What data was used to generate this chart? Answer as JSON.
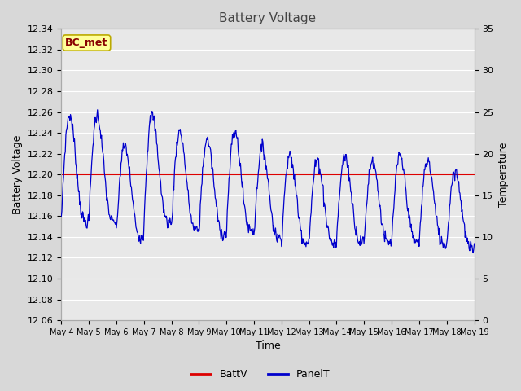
{
  "title": "Battery Voltage",
  "xlabel": "Time",
  "ylabel_left": "Battery Voltage",
  "ylabel_right": "Temperature",
  "ylim_left": [
    12.06,
    12.34
  ],
  "ylim_right": [
    0,
    35
  ],
  "batt_v": 12.2,
  "batt_color": "#dd0000",
  "panel_color": "#0000cc",
  "fig_bg": "#d8d8d8",
  "plot_bg": "#e8e8e8",
  "annotation_text": "BC_met",
  "annotation_bg": "#ffff99",
  "annotation_border": "#bbaa00",
  "annotation_text_color": "#880000",
  "legend_labels": [
    "BattV",
    "PanelT"
  ],
  "grid_color": "#ffffff",
  "title_fontsize": 11,
  "label_fontsize": 9,
  "tick_fontsize": 8,
  "yticks_left": [
    12.06,
    12.08,
    12.1,
    12.12,
    12.14,
    12.16,
    12.18,
    12.2,
    12.22,
    12.24,
    12.26,
    12.28,
    12.3,
    12.32,
    12.34
  ],
  "yticks_right": [
    0,
    5,
    10,
    15,
    20,
    25,
    30,
    35
  ],
  "days": [
    "May 4",
    "May 5",
    "May 6",
    "May 7",
    "May 8",
    "May 9",
    "May 10",
    "May 11",
    "May 12",
    "May 13",
    "May 14",
    "May 15",
    "May 16",
    "May 17",
    "May 18",
    "May 19"
  ]
}
